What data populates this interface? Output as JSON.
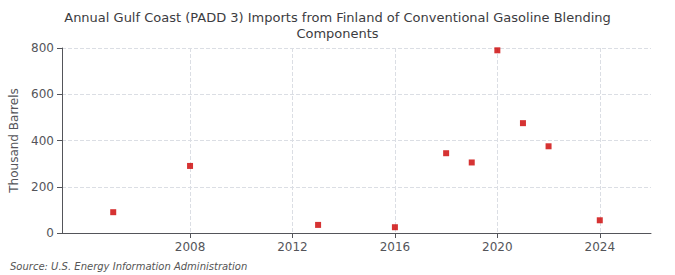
{
  "chart_data": {
    "type": "scatter",
    "title": "Annual Gulf Coast (PADD 3) Imports from Finland of Conventional Gasoline Blending\nComponents",
    "ylabel": "Thousand Barrels",
    "annotation": "Source: U.S. Energy Information Administration",
    "x": [
      2005,
      2008,
      2013,
      2016,
      2018,
      2019,
      2020,
      2021,
      2022,
      2024
    ],
    "values": [
      90,
      290,
      35,
      25,
      345,
      305,
      790,
      475,
      375,
      55
    ],
    "color": "#cc0000",
    "marker": "square",
    "xlim": [
      2003,
      2026
    ],
    "xticks": [
      2008,
      2012,
      2016,
      2020,
      2024
    ],
    "ylim": [
      0,
      800
    ],
    "yticks": [
      0,
      200,
      400,
      600,
      800
    ],
    "grid": true
  }
}
